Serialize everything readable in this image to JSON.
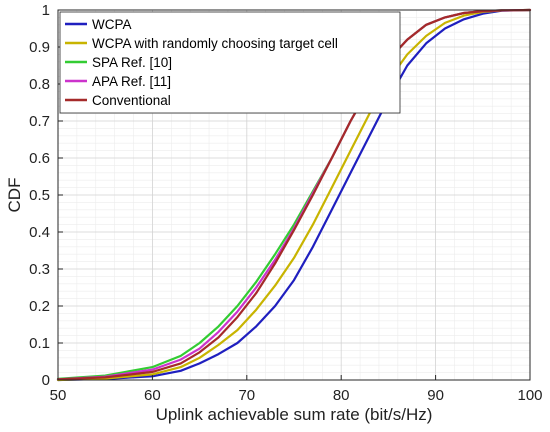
{
  "chart_data": {
    "type": "line",
    "xlabel": "Uplink achievable sum rate (bit/s/Hz)",
    "ylabel": "CDF",
    "xlim": [
      50,
      100
    ],
    "ylim": [
      0,
      1
    ],
    "x_ticks": [
      "50",
      "60",
      "70",
      "80",
      "90",
      "100"
    ],
    "y_ticks": [
      "0",
      "0.1",
      "0.2",
      "0.3",
      "0.4",
      "0.5",
      "0.6",
      "0.7",
      "0.8",
      "0.9",
      "1"
    ],
    "grid": true,
    "minor_grid": true,
    "legend_position": "top-left",
    "series": [
      {
        "name": "WCPA",
        "color": "#1f1fbf",
        "x": [
          50,
          55,
          60,
          63,
          65,
          67,
          69,
          71,
          73,
          75,
          77,
          79,
          81,
          83,
          85,
          87,
          89,
          91,
          93,
          95,
          97,
          100
        ],
        "y": [
          0.0,
          0.003,
          0.01,
          0.025,
          0.045,
          0.07,
          0.1,
          0.145,
          0.2,
          0.27,
          0.36,
          0.46,
          0.56,
          0.66,
          0.76,
          0.85,
          0.91,
          0.95,
          0.975,
          0.99,
          0.998,
          1.0
        ]
      },
      {
        "name": "WCPA with randomly choosing target cell",
        "color": "#c8b400",
        "x": [
          50,
          55,
          60,
          63,
          65,
          67,
          69,
          71,
          73,
          75,
          77,
          79,
          81,
          83,
          85,
          87,
          89,
          91,
          93,
          95,
          97,
          100
        ],
        "y": [
          0.0,
          0.004,
          0.015,
          0.035,
          0.06,
          0.095,
          0.135,
          0.19,
          0.255,
          0.33,
          0.42,
          0.52,
          0.62,
          0.72,
          0.81,
          0.88,
          0.93,
          0.965,
          0.985,
          0.995,
          0.999,
          1.0
        ]
      },
      {
        "name": "SPA Ref. [10]",
        "color": "#33cc33",
        "x": [
          50,
          55,
          60,
          63,
          65,
          67,
          69,
          71,
          73,
          75,
          77,
          79,
          81,
          83,
          85,
          87,
          89,
          91,
          93,
          95,
          97,
          100
        ],
        "y": [
          0.003,
          0.012,
          0.035,
          0.065,
          0.1,
          0.145,
          0.2,
          0.265,
          0.34,
          0.42,
          0.51,
          0.6,
          0.7,
          0.79,
          0.865,
          0.92,
          0.96,
          0.98,
          0.992,
          0.997,
          0.999,
          1.0
        ]
      },
      {
        "name": "APA Ref. [11]",
        "color": "#cc33cc",
        "x": [
          50,
          55,
          60,
          63,
          65,
          67,
          69,
          71,
          73,
          75,
          77,
          79,
          81,
          83,
          85,
          87,
          89,
          91,
          93,
          95,
          97,
          100
        ],
        "y": [
          0.002,
          0.009,
          0.028,
          0.055,
          0.085,
          0.13,
          0.185,
          0.25,
          0.325,
          0.41,
          0.505,
          0.6,
          0.7,
          0.79,
          0.865,
          0.92,
          0.96,
          0.98,
          0.992,
          0.997,
          0.999,
          1.0
        ]
      },
      {
        "name": "Conventional",
        "color": "#a52a2a",
        "x": [
          50,
          55,
          60,
          63,
          65,
          67,
          69,
          71,
          73,
          75,
          77,
          79,
          81,
          83,
          85,
          87,
          89,
          91,
          93,
          95,
          97,
          100
        ],
        "y": [
          0.002,
          0.007,
          0.022,
          0.045,
          0.075,
          0.115,
          0.17,
          0.235,
          0.315,
          0.405,
          0.5,
          0.6,
          0.7,
          0.79,
          0.865,
          0.92,
          0.96,
          0.98,
          0.992,
          0.997,
          0.999,
          1.0
        ]
      }
    ]
  }
}
